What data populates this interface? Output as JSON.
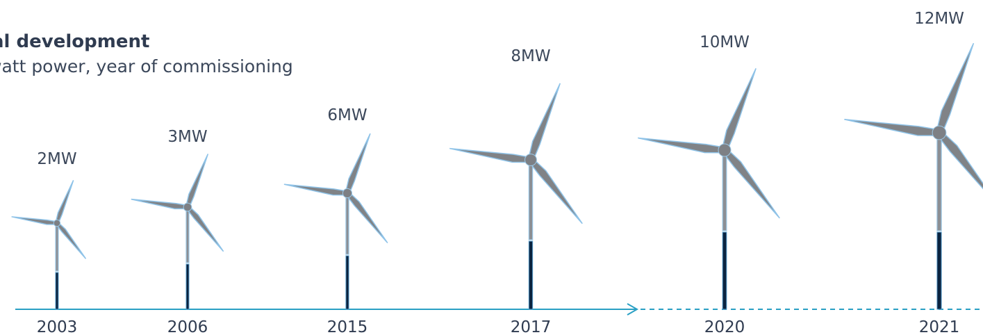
{
  "header": {
    "title": "al development",
    "subtitle": "watt power, year of commissioning"
  },
  "turbines": [
    {
      "power": "2MW",
      "year": "2003"
    },
    {
      "power": "3MW",
      "year": "2006"
    },
    {
      "power": "6MW",
      "year": "2015"
    },
    {
      "power": "8MW",
      "year": "2017"
    },
    {
      "power": "10MW",
      "year": "2020"
    },
    {
      "power": "12MW",
      "year": "2021"
    }
  ]
}
